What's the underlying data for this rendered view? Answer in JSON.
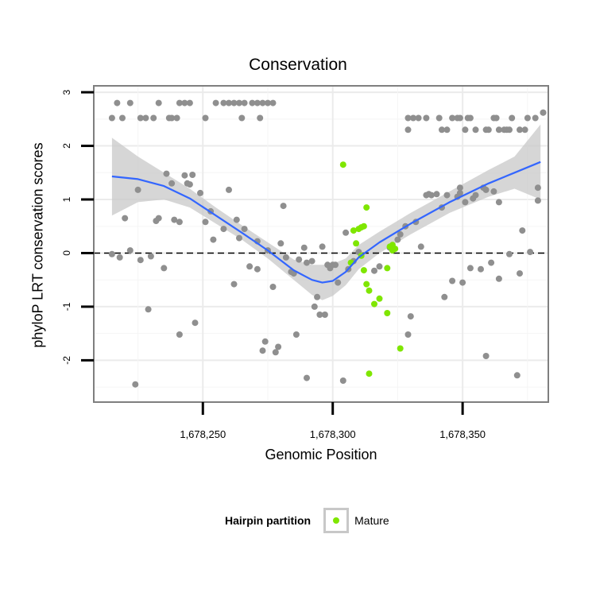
{
  "chart_data": {
    "type": "scatter",
    "title": "Conservation",
    "xlabel": "Genomic Position",
    "ylabel": "phyloP LRT conservation scores",
    "xlim": [
      1678208,
      1678383
    ],
    "ylim": [
      -2.78,
      3.12
    ],
    "x_ticks": [
      1678250,
      1678300,
      1678350
    ],
    "x_tick_labels": [
      "1,678,250",
      "1,678,300",
      "1,678,350"
    ],
    "y_ticks": [
      -2,
      -1,
      0,
      1,
      2,
      3
    ],
    "y_tick_labels": [
      "-2",
      "-1",
      "0",
      "1",
      "2",
      "3"
    ],
    "grid": true,
    "reference_line": {
      "y": 0,
      "style": "dashed"
    },
    "colors": {
      "background_points": "#8f8f8f",
      "mature": "#7fe600",
      "smooth": "#3366ff",
      "ribbon": "#c8c8c8",
      "grid": "#ebebeb",
      "frame": "#7f7f7f"
    },
    "legend": {
      "title": "Hairpin partition",
      "entries": [
        "Mature"
      ],
      "position": "bottom"
    },
    "series": [
      {
        "name": "Hairpin",
        "points": [
          [
            1678215,
            2.52
          ],
          [
            1678217,
            2.8
          ],
          [
            1678219,
            2.52
          ],
          [
            1678222,
            2.8
          ],
          [
            1678226,
            2.52
          ],
          [
            1678228,
            2.52
          ],
          [
            1678231,
            2.52
          ],
          [
            1678233,
            2.8
          ],
          [
            1678237,
            2.52
          ],
          [
            1678238,
            2.52
          ],
          [
            1678240,
            2.52
          ],
          [
            1678241,
            2.8
          ],
          [
            1678243,
            2.8
          ],
          [
            1678245,
            2.8
          ],
          [
            1678251,
            2.52
          ],
          [
            1678255,
            2.8
          ],
          [
            1678258,
            2.8
          ],
          [
            1678260,
            2.8
          ],
          [
            1678262,
            2.8
          ],
          [
            1678264,
            2.8
          ],
          [
            1678266,
            2.8
          ],
          [
            1678269,
            2.8
          ],
          [
            1678271,
            2.8
          ],
          [
            1678273,
            2.8
          ],
          [
            1678275,
            2.8
          ],
          [
            1678277,
            2.8
          ],
          [
            1678265,
            2.52
          ],
          [
            1678272,
            2.52
          ],
          [
            1678329,
            2.52
          ],
          [
            1678331,
            2.52
          ],
          [
            1678333,
            2.52
          ],
          [
            1678336,
            2.52
          ],
          [
            1678341,
            2.52
          ],
          [
            1678342,
            2.3
          ],
          [
            1678344,
            2.3
          ],
          [
            1678346,
            2.52
          ],
          [
            1678348,
            2.52
          ],
          [
            1678329,
            2.3
          ],
          [
            1678349,
            2.52
          ],
          [
            1678351,
            2.3
          ],
          [
            1678352,
            2.52
          ],
          [
            1678353,
            2.52
          ],
          [
            1678355,
            2.3
          ],
          [
            1678359,
            2.3
          ],
          [
            1678360,
            2.3
          ],
          [
            1678362,
            2.52
          ],
          [
            1678363,
            2.52
          ],
          [
            1678364,
            2.3
          ],
          [
            1678366,
            2.3
          ],
          [
            1678367,
            2.3
          ],
          [
            1678368,
            2.3
          ],
          [
            1678369,
            2.52
          ],
          [
            1678372,
            2.3
          ],
          [
            1678374,
            2.3
          ],
          [
            1678375,
            2.52
          ],
          [
            1678378,
            2.52
          ],
          [
            1678381,
            2.62
          ],
          [
            1678381,
            2.62
          ],
          [
            1678215,
            -0.02
          ],
          [
            1678218,
            -0.08
          ],
          [
            1678220,
            0.65
          ],
          [
            1678222,
            0.05
          ],
          [
            1678225,
            1.18
          ],
          [
            1678226,
            -0.13
          ],
          [
            1678229,
            -1.05
          ],
          [
            1678230,
            -0.06
          ],
          [
            1678232,
            0.6
          ],
          [
            1678233,
            0.65
          ],
          [
            1678235,
            -0.28
          ],
          [
            1678236,
            1.48
          ],
          [
            1678238,
            1.3
          ],
          [
            1678239,
            0.62
          ],
          [
            1678241,
            0.58
          ],
          [
            1678243,
            1.45
          ],
          [
            1678244,
            1.3
          ],
          [
            1678245,
            1.28
          ],
          [
            1678246,
            1.46
          ],
          [
            1678247,
            -1.3
          ],
          [
            1678241,
            -1.52
          ],
          [
            1678224,
            -2.45
          ],
          [
            1678249,
            1.12
          ],
          [
            1678251,
            0.58
          ],
          [
            1678253,
            0.78
          ],
          [
            1678254,
            0.25
          ],
          [
            1678258,
            0.45
          ],
          [
            1678260,
            1.18
          ],
          [
            1678262,
            -0.58
          ],
          [
            1678263,
            0.62
          ],
          [
            1678264,
            0.28
          ],
          [
            1678266,
            0.45
          ],
          [
            1678268,
            -0.25
          ],
          [
            1678271,
            -0.3
          ],
          [
            1678273,
            -1.82
          ],
          [
            1678274,
            -1.65
          ],
          [
            1678271,
            0.22
          ],
          [
            1678275,
            0.05
          ],
          [
            1678277,
            -0.63
          ],
          [
            1678278,
            -1.85
          ],
          [
            1678279,
            -1.75
          ],
          [
            1678281,
            0.88
          ],
          [
            1678280,
            0.18
          ],
          [
            1678282,
            -0.08
          ],
          [
            1678284,
            -0.35
          ],
          [
            1678285,
            -0.38
          ],
          [
            1678286,
            -1.52
          ],
          [
            1678287,
            -0.12
          ],
          [
            1678289,
            0.1
          ],
          [
            1678290,
            -0.18
          ],
          [
            1678292,
            -0.15
          ],
          [
            1678293,
            -1.0
          ],
          [
            1678294,
            -0.82
          ],
          [
            1678295,
            -1.15
          ],
          [
            1678296,
            0.12
          ],
          [
            1678297,
            -1.15
          ],
          [
            1678298,
            -0.22
          ],
          [
            1678299,
            -0.28
          ],
          [
            1678300,
            -0.22
          ],
          [
            1678301,
            -0.22
          ],
          [
            1678302,
            -0.55
          ],
          [
            1678290,
            -2.33
          ],
          [
            1678304,
            -2.38
          ],
          [
            1678305,
            0.38
          ],
          [
            1678306,
            -0.3
          ],
          [
            1678308,
            -0.15
          ],
          [
            1678310,
            0.02
          ],
          [
            1678316,
            -0.33
          ],
          [
            1678318,
            -0.25
          ],
          [
            1678322,
            0.1
          ],
          [
            1678325,
            0.25
          ],
          [
            1678326,
            0.35
          ],
          [
            1678329,
            -1.52
          ],
          [
            1678328,
            0.5
          ],
          [
            1678330,
            -1.18
          ],
          [
            1678332,
            0.58
          ],
          [
            1678334,
            0.12
          ],
          [
            1678336,
            1.08
          ],
          [
            1678337,
            1.1
          ],
          [
            1678338,
            1.08
          ],
          [
            1678340,
            1.1
          ],
          [
            1678342,
            0.85
          ],
          [
            1678343,
            -0.82
          ],
          [
            1678344,
            1.08
          ],
          [
            1678346,
            -0.52
          ],
          [
            1678348,
            1.05
          ],
          [
            1678349,
            1.22
          ],
          [
            1678349,
            1.12
          ],
          [
            1678350,
            -0.55
          ],
          [
            1678351,
            0.95
          ],
          [
            1678353,
            -0.28
          ],
          [
            1678354,
            1.02
          ],
          [
            1678355,
            1.08
          ],
          [
            1678357,
            -0.3
          ],
          [
            1678358,
            1.22
          ],
          [
            1678359,
            1.18
          ],
          [
            1678359,
            -1.92
          ],
          [
            1678361,
            -0.18
          ],
          [
            1678362,
            1.15
          ],
          [
            1678364,
            0.95
          ],
          [
            1678364,
            -0.48
          ],
          [
            1678368,
            -0.02
          ],
          [
            1678371,
            -2.28
          ],
          [
            1678372,
            -0.38
          ],
          [
            1678373,
            0.42
          ],
          [
            1678376,
            0.02
          ],
          [
            1678379,
            1.22
          ],
          [
            1678379,
            0.98
          ]
        ]
      },
      {
        "name": "Mature",
        "points": [
          [
            1678304,
            1.65
          ],
          [
            1678310,
            0.45
          ],
          [
            1678308,
            0.42
          ],
          [
            1678311,
            0.48
          ],
          [
            1678313,
            0.85
          ],
          [
            1678312,
            0.5
          ],
          [
            1678309,
            0.18
          ],
          [
            1678311,
            -0.05
          ],
          [
            1678307,
            -0.18
          ],
          [
            1678312,
            -0.32
          ],
          [
            1678313,
            -0.58
          ],
          [
            1678314,
            -0.7
          ],
          [
            1678316,
            -0.95
          ],
          [
            1678318,
            -0.85
          ],
          [
            1678321,
            -1.12
          ],
          [
            1678322,
            0.12
          ],
          [
            1678323,
            0.05
          ],
          [
            1678323,
            0.15
          ],
          [
            1678324,
            0.08
          ],
          [
            1678321,
            -0.28
          ],
          [
            1678326,
            -1.78
          ],
          [
            1678314,
            -2.25
          ]
        ]
      }
    ],
    "smooth_line": {
      "x": [
        1678215,
        1678225,
        1678235,
        1678245,
        1678255,
        1678265,
        1678275,
        1678285,
        1678292,
        1678296,
        1678300,
        1678305,
        1678310,
        1678318,
        1678330,
        1678345,
        1678360,
        1678370,
        1678380
      ],
      "y": [
        1.43,
        1.38,
        1.25,
        1.02,
        0.7,
        0.38,
        0.05,
        -0.32,
        -0.5,
        -0.55,
        -0.52,
        -0.35,
        -0.08,
        0.2,
        0.55,
        0.95,
        1.3,
        1.5,
        1.7
      ],
      "ci_lower": [
        0.7,
        0.95,
        1.0,
        0.85,
        0.55,
        0.25,
        -0.1,
        -0.5,
        -0.78,
        -0.88,
        -0.8,
        -0.6,
        -0.3,
        0.0,
        0.35,
        0.75,
        1.05,
        1.2,
        1.0
      ],
      "ci_upper": [
        2.15,
        1.8,
        1.5,
        1.2,
        0.85,
        0.52,
        0.2,
        -0.12,
        -0.22,
        -0.22,
        -0.2,
        -0.1,
        0.15,
        0.4,
        0.75,
        1.15,
        1.55,
        1.8,
        2.4
      ]
    }
  }
}
